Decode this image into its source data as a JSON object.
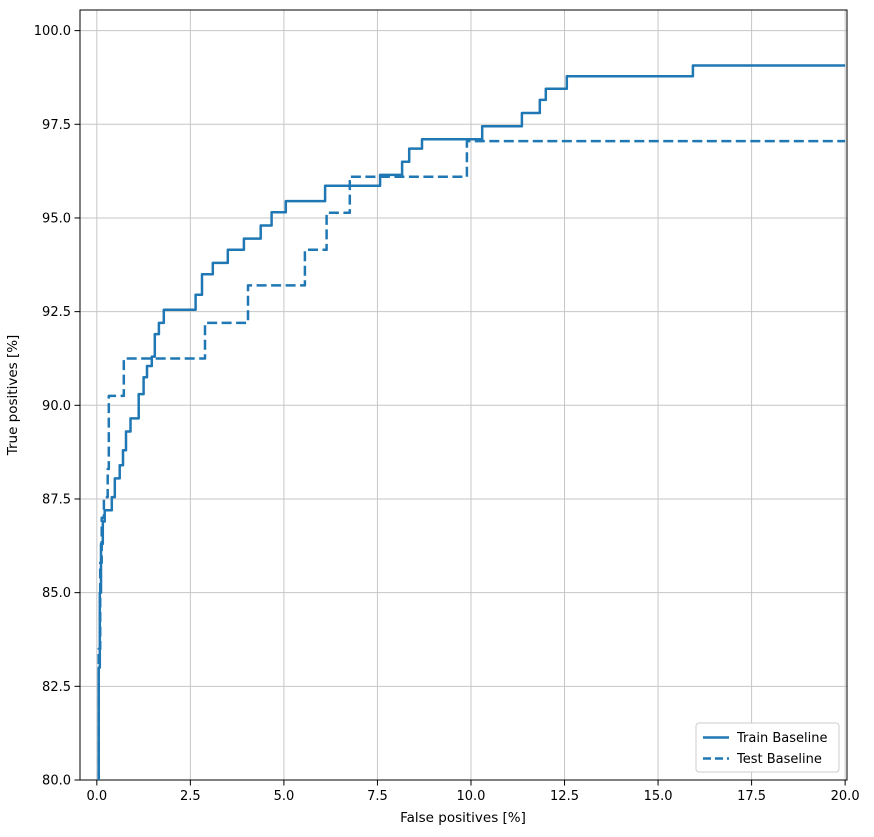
{
  "page": {
    "background": "#ffffff"
  },
  "chart_data": {
    "type": "line",
    "subtype": "step-post",
    "title": "",
    "xlabel": "False positives [%]",
    "ylabel": "True positives [%]",
    "xlim": [
      -0.45,
      20.05
    ],
    "ylim": [
      80.0,
      100.55
    ],
    "xticks": [
      0.0,
      2.5,
      5.0,
      7.5,
      10.0,
      12.5,
      15.0,
      17.5,
      20.0
    ],
    "xtick_labels": [
      "0.0",
      "2.5",
      "5.0",
      "7.5",
      "10.0",
      "12.5",
      "15.0",
      "17.5",
      "20.0"
    ],
    "yticks": [
      80.0,
      82.5,
      85.0,
      87.5,
      90.0,
      92.5,
      95.0,
      97.5,
      100.0
    ],
    "ytick_labels": [
      "80.0",
      "82.5",
      "85.0",
      "87.5",
      "90.0",
      "92.5",
      "95.0",
      "97.5",
      "100.0"
    ],
    "grid": true,
    "grid_color": "#c6c6c6",
    "axis_color": "#000000",
    "line_color": "#1f77b4",
    "line_width": 2.5,
    "legend": {
      "position": "lower-right",
      "border_color": "#cccccc",
      "background": "#ffffff"
    },
    "series": [
      {
        "name": "Train Baseline",
        "dash": "solid",
        "points": [
          [
            0.05,
            80.0
          ],
          [
            0.05,
            83.0
          ],
          [
            0.08,
            83.0
          ],
          [
            0.08,
            85.0
          ],
          [
            0.11,
            85.0
          ],
          [
            0.11,
            86.3
          ],
          [
            0.16,
            86.3
          ],
          [
            0.16,
            86.9
          ],
          [
            0.21,
            86.9
          ],
          [
            0.21,
            87.2
          ],
          [
            0.4,
            87.2
          ],
          [
            0.4,
            87.55
          ],
          [
            0.48,
            87.55
          ],
          [
            0.48,
            88.05
          ],
          [
            0.61,
            88.05
          ],
          [
            0.61,
            88.4
          ],
          [
            0.7,
            88.4
          ],
          [
            0.7,
            88.8
          ],
          [
            0.78,
            88.8
          ],
          [
            0.78,
            89.3
          ],
          [
            0.9,
            89.3
          ],
          [
            0.9,
            89.65
          ],
          [
            1.12,
            89.65
          ],
          [
            1.12,
            90.3
          ],
          [
            1.25,
            90.3
          ],
          [
            1.25,
            90.75
          ],
          [
            1.34,
            90.75
          ],
          [
            1.34,
            91.05
          ],
          [
            1.47,
            91.05
          ],
          [
            1.47,
            91.3
          ],
          [
            1.55,
            91.3
          ],
          [
            1.55,
            91.9
          ],
          [
            1.66,
            91.9
          ],
          [
            1.66,
            92.2
          ],
          [
            1.79,
            92.2
          ],
          [
            1.79,
            92.55
          ],
          [
            2.64,
            92.55
          ],
          [
            2.64,
            92.95
          ],
          [
            2.81,
            92.95
          ],
          [
            2.81,
            93.5
          ],
          [
            3.1,
            93.5
          ],
          [
            3.1,
            93.8
          ],
          [
            3.5,
            93.8
          ],
          [
            3.5,
            94.15
          ],
          [
            3.93,
            94.15
          ],
          [
            3.93,
            94.45
          ],
          [
            4.38,
            94.45
          ],
          [
            4.38,
            94.8
          ],
          [
            4.67,
            94.8
          ],
          [
            4.67,
            95.15
          ],
          [
            5.05,
            95.15
          ],
          [
            5.05,
            95.45
          ],
          [
            6.1,
            95.45
          ],
          [
            6.1,
            95.86
          ],
          [
            7.57,
            95.86
          ],
          [
            7.57,
            96.15
          ],
          [
            8.16,
            96.15
          ],
          [
            8.16,
            96.5
          ],
          [
            8.35,
            96.5
          ],
          [
            8.35,
            96.85
          ],
          [
            8.69,
            96.85
          ],
          [
            8.69,
            97.1
          ],
          [
            10.3,
            97.1
          ],
          [
            10.3,
            97.45
          ],
          [
            11.36,
            97.45
          ],
          [
            11.36,
            97.8
          ],
          [
            11.84,
            97.8
          ],
          [
            11.84,
            98.15
          ],
          [
            12.0,
            98.15
          ],
          [
            12.0,
            98.45
          ],
          [
            12.56,
            98.45
          ],
          [
            12.56,
            98.78
          ],
          [
            15.93,
            98.78
          ],
          [
            15.93,
            99.07
          ],
          [
            20.0,
            99.07
          ]
        ]
      },
      {
        "name": "Test Baseline",
        "dash": "dashed",
        "points": [
          [
            0.05,
            80.0
          ],
          [
            0.05,
            83.5
          ],
          [
            0.09,
            83.5
          ],
          [
            0.09,
            85.8
          ],
          [
            0.13,
            85.8
          ],
          [
            0.13,
            87.0
          ],
          [
            0.19,
            87.0
          ],
          [
            0.19,
            87.55
          ],
          [
            0.29,
            87.55
          ],
          [
            0.29,
            88.3
          ],
          [
            0.32,
            88.3
          ],
          [
            0.32,
            90.25
          ],
          [
            0.72,
            90.25
          ],
          [
            0.72,
            91.25
          ],
          [
            2.89,
            91.25
          ],
          [
            2.89,
            92.2
          ],
          [
            4.04,
            92.2
          ],
          [
            4.04,
            93.2
          ],
          [
            5.56,
            93.2
          ],
          [
            5.56,
            94.15
          ],
          [
            6.14,
            94.15
          ],
          [
            6.14,
            95.14
          ],
          [
            6.76,
            95.14
          ],
          [
            6.76,
            96.1
          ],
          [
            9.89,
            96.1
          ],
          [
            9.89,
            97.05
          ],
          [
            20.0,
            97.05
          ]
        ]
      }
    ]
  }
}
